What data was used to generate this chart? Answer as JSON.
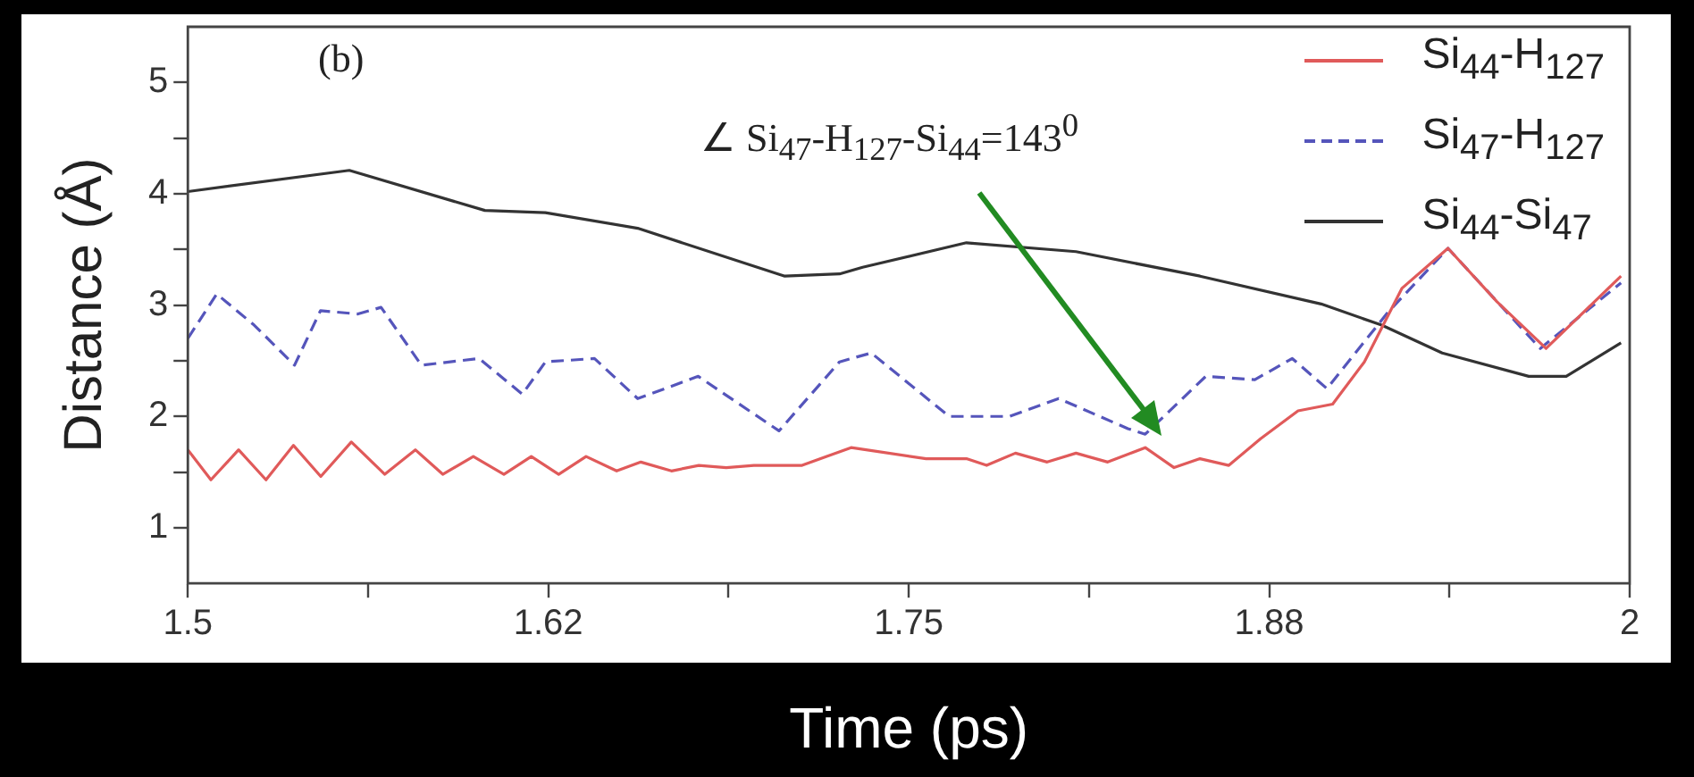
{
  "chart_data": {
    "type": "line",
    "xlabel": "Time (ps)",
    "ylabel": "Distance (Å)",
    "xlim": [
      1.5,
      2
    ],
    "ylim": [
      0.5,
      5.5
    ],
    "xticks": [
      1.5,
      {
        "value": 1.5625,
        "label": null
      },
      {
        "value": 1.625,
        "label": "1.62"
      },
      {
        "value": 1.6875,
        "label": null
      },
      1.75,
      {
        "value": 1.8125,
        "label": null
      },
      {
        "value": 1.875,
        "label": "1.88"
      },
      {
        "value": 1.9375,
        "label": null
      },
      2
    ],
    "yticks": [
      1,
      {
        "value": 1.5,
        "label": null
      },
      2,
      {
        "value": 2.5,
        "label": null
      },
      3,
      {
        "value": 3.5,
        "label": null
      },
      4,
      {
        "value": 4.5,
        "label": null
      },
      5
    ],
    "grid": false,
    "legend": "top right",
    "marker": "none",
    "annotations": [
      "(b)",
      "∠ Si$_{47}$-H$_{127}$-Si$_{44}$=143$^{0}$"
    ],
    "series": [
      {
        "name": "Si$_{44}$-H$_{127}$",
        "color": "#e05a5a",
        "line_style": "solid",
        "x": [
          1.5,
          1.508,
          1.5176,
          1.5271,
          1.5366,
          1.5461,
          1.5567,
          1.5683,
          1.5789,
          1.5884,
          1.599,
          1.6096,
          1.6191,
          1.6286,
          1.6381,
          1.6487,
          1.6571,
          1.6677,
          1.6772,
          1.6867,
          1.6963,
          1.7068,
          1.713,
          1.73,
          1.756,
          1.77,
          1.777,
          1.787,
          1.798,
          1.808,
          1.819,
          1.832,
          1.842,
          1.851,
          1.861,
          1.872,
          1.885,
          1.897,
          1.908,
          1.921,
          1.937,
          1.954,
          1.971,
          1.997
        ],
        "values": [
          1.7,
          1.43,
          1.7,
          1.43,
          1.74,
          1.46,
          1.77,
          1.48,
          1.7,
          1.48,
          1.64,
          1.48,
          1.64,
          1.48,
          1.64,
          1.51,
          1.59,
          1.51,
          1.56,
          1.54,
          1.56,
          1.56,
          1.56,
          1.72,
          1.62,
          1.62,
          1.56,
          1.67,
          1.59,
          1.67,
          1.59,
          1.72,
          1.54,
          1.62,
          1.56,
          1.8,
          2.05,
          2.11,
          2.49,
          3.15,
          3.51,
          3.03,
          2.61,
          3.26
        ]
      },
      {
        "name": "Si$_{47}$-H$_{127}$",
        "color": "#5555bb",
        "line_style": "dashed",
        "x": [
          1.5,
          1.51,
          1.523,
          1.537,
          1.546,
          1.559,
          1.567,
          1.581,
          1.601,
          1.616,
          1.624,
          1.641,
          1.656,
          1.677,
          1.705,
          1.726,
          1.737,
          1.764,
          1.785,
          1.802,
          1.826,
          1.832,
          1.853,
          1.87,
          1.883,
          1.895,
          1.916,
          1.937,
          1.969,
          1.997
        ],
        "values": [
          2.7,
          3.1,
          2.82,
          2.46,
          2.95,
          2.92,
          2.98,
          2.46,
          2.52,
          2.2,
          2.49,
          2.52,
          2.16,
          2.36,
          1.87,
          2.49,
          2.57,
          2.0,
          2.0,
          2.16,
          1.89,
          1.84,
          2.36,
          2.33,
          2.52,
          2.25,
          2.93,
          3.51,
          2.61,
          3.2
        ]
      },
      {
        "name": "Si$_{44}$-Si$_{47}$",
        "color": "#333333",
        "line_style": "solid",
        "x": [
          1.5,
          1.556,
          1.603,
          1.624,
          1.656,
          1.707,
          1.726,
          1.734,
          1.77,
          1.808,
          1.851,
          1.893,
          1.914,
          1.935,
          1.965,
          1.978,
          1.997
        ],
        "values": [
          4.02,
          4.21,
          3.85,
          3.83,
          3.69,
          3.26,
          3.28,
          3.34,
          3.56,
          3.48,
          3.26,
          3.01,
          2.82,
          2.57,
          2.36,
          2.36,
          2.66
        ]
      }
    ]
  }
}
